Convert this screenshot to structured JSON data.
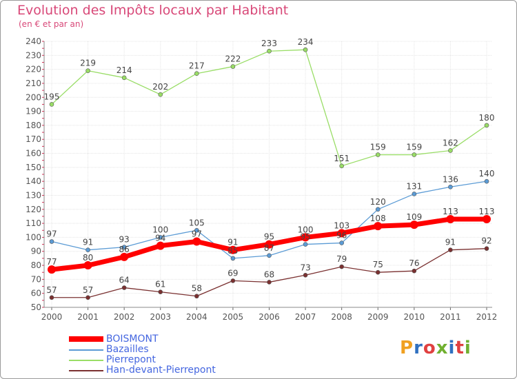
{
  "title": "Evolution des Impôts locaux par Habitant",
  "subtitle": "(en € et par an)",
  "logo": {
    "letters": [
      "P",
      "r",
      "o",
      "x",
      "i",
      "t",
      "i"
    ],
    "colors": [
      "#f0a020",
      "#3070c0",
      "#e04040",
      "#70b030",
      "#3070c0",
      "#e04040",
      "#70b030"
    ]
  },
  "chart_data": {
    "type": "line",
    "x": [
      "2000",
      "2001",
      "2002",
      "2003",
      "2004",
      "2005",
      "2006",
      "2007",
      "2008",
      "2009",
      "2010",
      "2011",
      "2012"
    ],
    "ylim": [
      50,
      240
    ],
    "yticks": [
      50,
      60,
      70,
      80,
      90,
      100,
      110,
      120,
      130,
      140,
      150,
      160,
      170,
      180,
      190,
      200,
      210,
      220,
      230,
      240
    ],
    "grid": true,
    "legend_position": "bottom-left",
    "series": [
      {
        "name": "BOISMONT",
        "color": "#ff0000",
        "values": [
          77,
          80,
          86,
          94,
          97,
          91,
          95,
          100,
          103,
          108,
          109,
          113,
          113
        ],
        "labels": [
          "77",
          "80",
          "86",
          "94",
          "97",
          "91",
          "95",
          "100",
          "103",
          "108",
          "109",
          "113",
          "113"
        ]
      },
      {
        "name": "Bazailles",
        "color": "#5b9bd5",
        "values": [
          97,
          91,
          93,
          100,
          105,
          85,
          87,
          95,
          96,
          120,
          131,
          136,
          140
        ],
        "labels": [
          "97",
          "91",
          "93",
          "100",
          "105",
          "85",
          "87",
          "95",
          "96",
          "120",
          "131",
          "136",
          "140"
        ]
      },
      {
        "name": "Pierrepont",
        "color": "#99dd66",
        "values": [
          195,
          219,
          214,
          202,
          217,
          222,
          233,
          234,
          151,
          159,
          159,
          162,
          180
        ],
        "labels": [
          "195",
          "219",
          "214",
          "202",
          "217",
          "222",
          "233",
          "234",
          "151",
          "159",
          "159",
          "162",
          "180"
        ]
      },
      {
        "name": "Han-devant-Pierrepont",
        "color": "#7a3030",
        "values": [
          57,
          57,
          64,
          61,
          58,
          69,
          68,
          73,
          79,
          75,
          76,
          91,
          92
        ],
        "labels": [
          "57",
          "57",
          "64",
          "61",
          "58",
          "69",
          "68",
          "73",
          "79",
          "75",
          "76",
          "91",
          "92"
        ]
      }
    ]
  }
}
